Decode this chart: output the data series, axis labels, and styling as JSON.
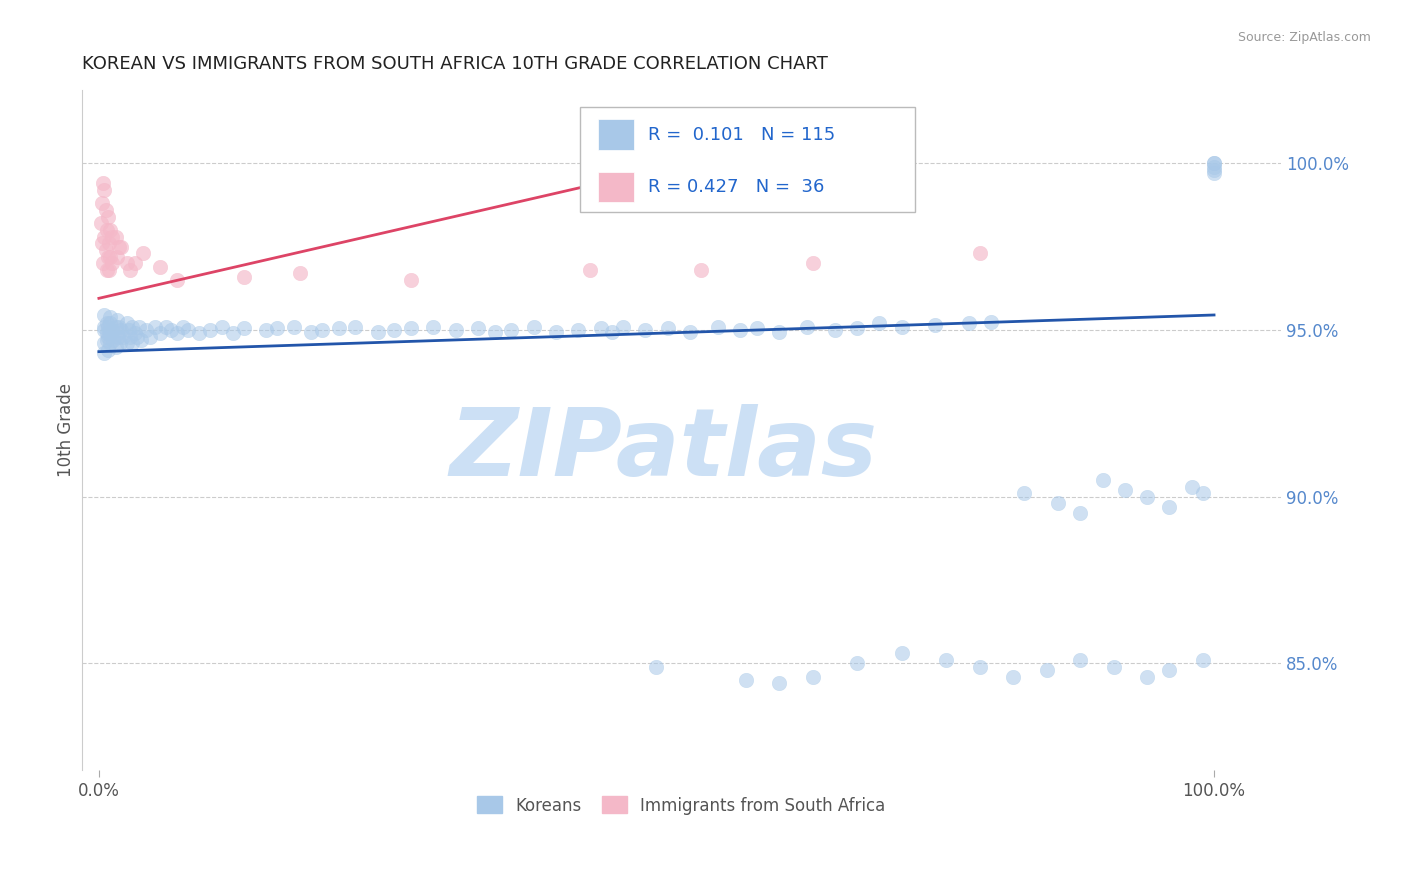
{
  "title": "KOREAN VS IMMIGRANTS FROM SOUTH AFRICA 10TH GRADE CORRELATION CHART",
  "source_text": "Source: ZipAtlas.com",
  "ylabel": "10th Grade",
  "y_tick_labels": [
    "85.0%",
    "90.0%",
    "95.0%",
    "100.0%"
  ],
  "y_tick_values": [
    0.85,
    0.9,
    0.95,
    1.0
  ],
  "legend_entries": [
    {
      "label": "Koreans",
      "color": "#a8c8e8",
      "R": 0.101,
      "N": 115
    },
    {
      "label": "Immigrants from South Africa",
      "color": "#f4b8c8",
      "R": 0.427,
      "N": 36
    }
  ],
  "blue_dot_color": "#a8c8e8",
  "pink_dot_color": "#f4b8c8",
  "blue_line_color": "#2255aa",
  "pink_line_color": "#dd4466",
  "grid_color": "#cccccc",
  "background_color": "#ffffff",
  "watermark": "ZIPatlas",
  "watermark_color": "#cce0f5",
  "blue_line_x": [
    0.0,
    1.0
  ],
  "blue_line_y": [
    0.9435,
    0.9545
  ],
  "pink_line_x": [
    0.0,
    0.52
  ],
  "pink_line_y": [
    0.9595,
    0.9995
  ],
  "xlim": [
    -0.015,
    1.06
  ],
  "ylim": [
    0.818,
    1.022
  ],
  "blue_x": [
    0.005,
    0.005,
    0.005,
    0.005,
    0.005,
    0.007,
    0.007,
    0.007,
    0.008,
    0.008,
    0.008,
    0.01,
    0.01,
    0.01,
    0.01,
    0.012,
    0.013,
    0.015,
    0.015,
    0.016,
    0.016,
    0.017,
    0.018,
    0.019,
    0.02,
    0.022,
    0.025,
    0.025,
    0.027,
    0.028,
    0.03,
    0.03,
    0.032,
    0.034,
    0.036,
    0.038,
    0.042,
    0.046,
    0.05,
    0.055,
    0.06,
    0.065,
    0.07,
    0.075,
    0.08,
    0.09,
    0.1,
    0.11,
    0.12,
    0.13,
    0.15,
    0.16,
    0.175,
    0.19,
    0.2,
    0.215,
    0.23,
    0.25,
    0.265,
    0.28,
    0.3,
    0.32,
    0.34,
    0.355,
    0.37,
    0.39,
    0.41,
    0.43,
    0.45,
    0.46,
    0.47,
    0.49,
    0.51,
    0.53,
    0.555,
    0.575,
    0.59,
    0.61,
    0.635,
    0.66,
    0.68,
    0.7,
    0.72,
    0.75,
    0.78,
    0.8,
    0.83,
    0.86,
    0.88,
    0.9,
    0.92,
    0.94,
    0.96,
    0.98,
    0.99,
    1.0,
    1.0,
    1.0,
    1.0,
    1.0,
    0.5,
    0.58,
    0.61,
    0.64,
    0.68,
    0.72,
    0.76,
    0.79,
    0.82,
    0.85,
    0.88,
    0.91,
    0.94,
    0.96,
    0.99
  ],
  "blue_y": [
    0.946,
    0.951,
    0.9545,
    0.95,
    0.943,
    0.947,
    0.949,
    0.952,
    0.944,
    0.948,
    0.951,
    0.946,
    0.949,
    0.952,
    0.954,
    0.95,
    0.947,
    0.951,
    0.945,
    0.949,
    0.953,
    0.948,
    0.951,
    0.946,
    0.95,
    0.948,
    0.952,
    0.946,
    0.95,
    0.948,
    0.951,
    0.946,
    0.949,
    0.948,
    0.951,
    0.947,
    0.95,
    0.948,
    0.951,
    0.949,
    0.951,
    0.95,
    0.949,
    0.951,
    0.95,
    0.949,
    0.95,
    0.951,
    0.949,
    0.9505,
    0.95,
    0.9505,
    0.951,
    0.9495,
    0.95,
    0.9505,
    0.951,
    0.9495,
    0.95,
    0.9505,
    0.951,
    0.95,
    0.9505,
    0.9495,
    0.95,
    0.951,
    0.9495,
    0.95,
    0.9505,
    0.9495,
    0.951,
    0.95,
    0.9505,
    0.9495,
    0.951,
    0.95,
    0.9505,
    0.9495,
    0.951,
    0.95,
    0.9505,
    0.952,
    0.951,
    0.9515,
    0.952,
    0.9525,
    0.901,
    0.898,
    0.895,
    0.905,
    0.902,
    0.9,
    0.897,
    0.903,
    0.901,
    0.999,
    1.0,
    0.998,
    1.0,
    0.997,
    0.849,
    0.845,
    0.844,
    0.846,
    0.85,
    0.853,
    0.851,
    0.849,
    0.846,
    0.848,
    0.851,
    0.849,
    0.846,
    0.848,
    0.851
  ],
  "pink_x": [
    0.002,
    0.003,
    0.003,
    0.004,
    0.004,
    0.005,
    0.005,
    0.006,
    0.006,
    0.007,
    0.007,
    0.008,
    0.008,
    0.009,
    0.009,
    0.01,
    0.01,
    0.012,
    0.012,
    0.015,
    0.016,
    0.018,
    0.02,
    0.025,
    0.028,
    0.032,
    0.04,
    0.055,
    0.07,
    0.13,
    0.18,
    0.28,
    0.44,
    0.54,
    0.64,
    0.79
  ],
  "pink_y": [
    0.982,
    0.976,
    0.988,
    0.97,
    0.994,
    0.978,
    0.992,
    0.974,
    0.986,
    0.968,
    0.98,
    0.972,
    0.984,
    0.968,
    0.976,
    0.98,
    0.972,
    0.978,
    0.97,
    0.978,
    0.972,
    0.975,
    0.975,
    0.97,
    0.968,
    0.97,
    0.973,
    0.969,
    0.965,
    0.966,
    0.967,
    0.965,
    0.968,
    0.968,
    0.97,
    0.973
  ]
}
